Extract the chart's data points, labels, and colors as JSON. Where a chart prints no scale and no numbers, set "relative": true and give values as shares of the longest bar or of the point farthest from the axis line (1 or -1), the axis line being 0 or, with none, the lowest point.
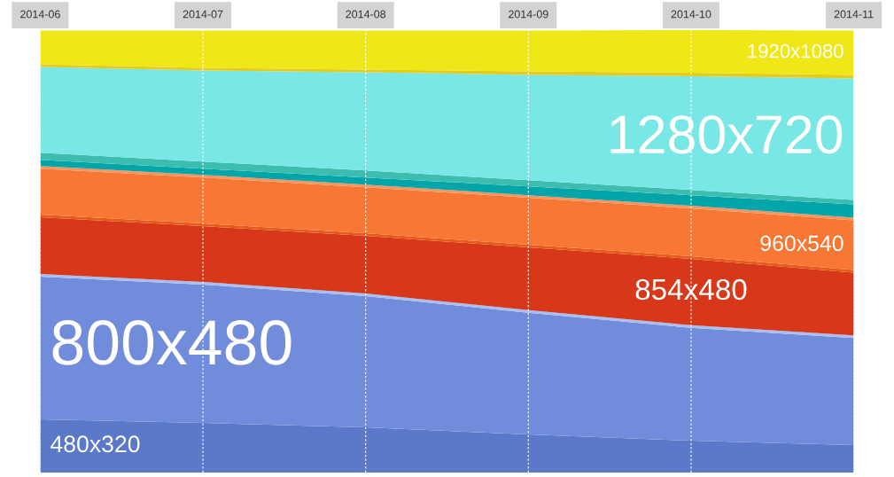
{
  "chart_data": {
    "type": "area",
    "stacked": true,
    "relative": true,
    "grid": "x",
    "categories": [
      "2014-06",
      "2014-07",
      "2014-08",
      "2014-09",
      "2014-10",
      "2014-11"
    ],
    "series": [
      {
        "name": "480x320",
        "color": "#5c78c8",
        "values": [
          0.12,
          0.112,
          0.102,
          0.086,
          0.072,
          0.062
        ]
      },
      {
        "name": "800x480",
        "color": "#728cdc",
        "values": [
          0.323,
          0.313,
          0.297,
          0.275,
          0.255,
          0.242
        ]
      },
      {
        "color": "#a8bff5",
        "values": [
          0.006,
          0.006,
          0.006,
          0.006,
          0.006,
          0.006
        ]
      },
      {
        "name": "854x480",
        "color": "#d63819",
        "values": [
          0.128,
          0.126,
          0.13,
          0.142,
          0.15,
          0.142
        ]
      },
      {
        "color": "#e85a18",
        "values": [
          0.006,
          0.006,
          0.006,
          0.006,
          0.006,
          0.006
        ]
      },
      {
        "name": "960x540",
        "color": "#f87734",
        "values": [
          0.104,
          0.104,
          0.104,
          0.106,
          0.108,
          0.112
        ]
      },
      {
        "color": "#fb9560",
        "values": [
          0.006,
          0.006,
          0.006,
          0.006,
          0.006,
          0.006
        ]
      },
      {
        "color": "#02a5a8",
        "values": [
          0.014,
          0.014,
          0.016,
          0.02,
          0.024,
          0.03
        ]
      },
      {
        "color": "#3dbdb0",
        "values": [
          0.016,
          0.016,
          0.016,
          0.014,
          0.012,
          0.01
        ]
      },
      {
        "name": "1280x720",
        "color": "#78e7e5",
        "values": [
          0.194,
          0.206,
          0.222,
          0.238,
          0.257,
          0.275
        ]
      },
      {
        "color": "#e3cc1e",
        "values": [
          0.006,
          0.006,
          0.006,
          0.008,
          0.008,
          0.008
        ]
      },
      {
        "name": "1920x1080",
        "color": "#f0e716",
        "values": [
          0.076,
          0.084,
          0.088,
          0.092,
          0.096,
          0.1
        ]
      }
    ]
  }
}
